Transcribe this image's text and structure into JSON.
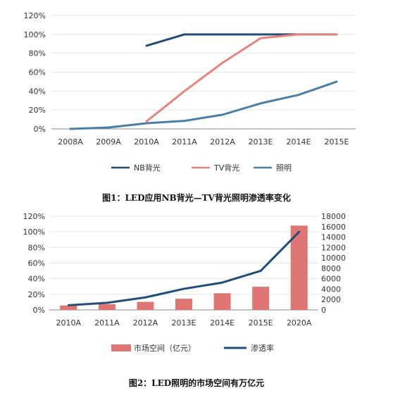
{
  "colors": {
    "navy": "#1f4e79",
    "pink": "#e8837d",
    "steel": "#4a7fa5",
    "bar": "#e07674"
  },
  "chart_data": [
    {
      "type": "line",
      "categories": [
        "2008A",
        "2009A",
        "2010A",
        "2011A",
        "2012A",
        "2013E",
        "2014E",
        "2015E"
      ],
      "y_ticks": [
        "0%",
        "20%",
        "40%",
        "60%",
        "80%",
        "100%",
        "120%"
      ],
      "ylim": [
        0,
        120
      ],
      "series": [
        {
          "name": "NB背光",
          "color": "#1f4e79",
          "values": [
            null,
            null,
            88,
            100,
            100,
            100,
            100,
            100
          ]
        },
        {
          "name": "TV背光",
          "color": "#e8837d",
          "values": [
            null,
            null,
            8,
            40,
            70,
            96,
            100,
            100
          ]
        },
        {
          "name": "照明",
          "color": "#4a7fa5",
          "values": [
            0,
            1.5,
            6,
            8.5,
            15,
            27,
            36,
            50
          ]
        }
      ],
      "legend": "bottom",
      "caption": "图1：LED应用NB背光—TV背光照明渗透率变化"
    },
    {
      "type": "bar+line",
      "categories": [
        "2010A",
        "2011A",
        "2012A",
        "2013E",
        "2014E",
        "2015E",
        "2020A"
      ],
      "y_left_ticks": [
        "0%",
        "20%",
        "40%",
        "60%",
        "80%",
        "100%",
        "120%"
      ],
      "ylim_left": [
        0,
        120
      ],
      "y_right_ticks": [
        "0",
        "2000",
        "4000",
        "6000",
        "8000",
        "10000",
        "12000",
        "14000",
        "16000",
        "18000"
      ],
      "ylim_right": [
        0,
        18000
      ],
      "bars": {
        "name": "市场空间（亿元）",
        "color": "#e07674",
        "axis": "right",
        "values": [
          850,
          1100,
          1550,
          2150,
          3200,
          4450,
          16200
        ]
      },
      "line": {
        "name": "渗透率",
        "color": "#1f4e79",
        "axis": "left",
        "values": [
          6,
          9,
          16,
          27,
          35,
          50,
          100
        ]
      },
      "legend": "bottom",
      "caption": "图2：LED照明的市场空间有万亿元"
    }
  ]
}
